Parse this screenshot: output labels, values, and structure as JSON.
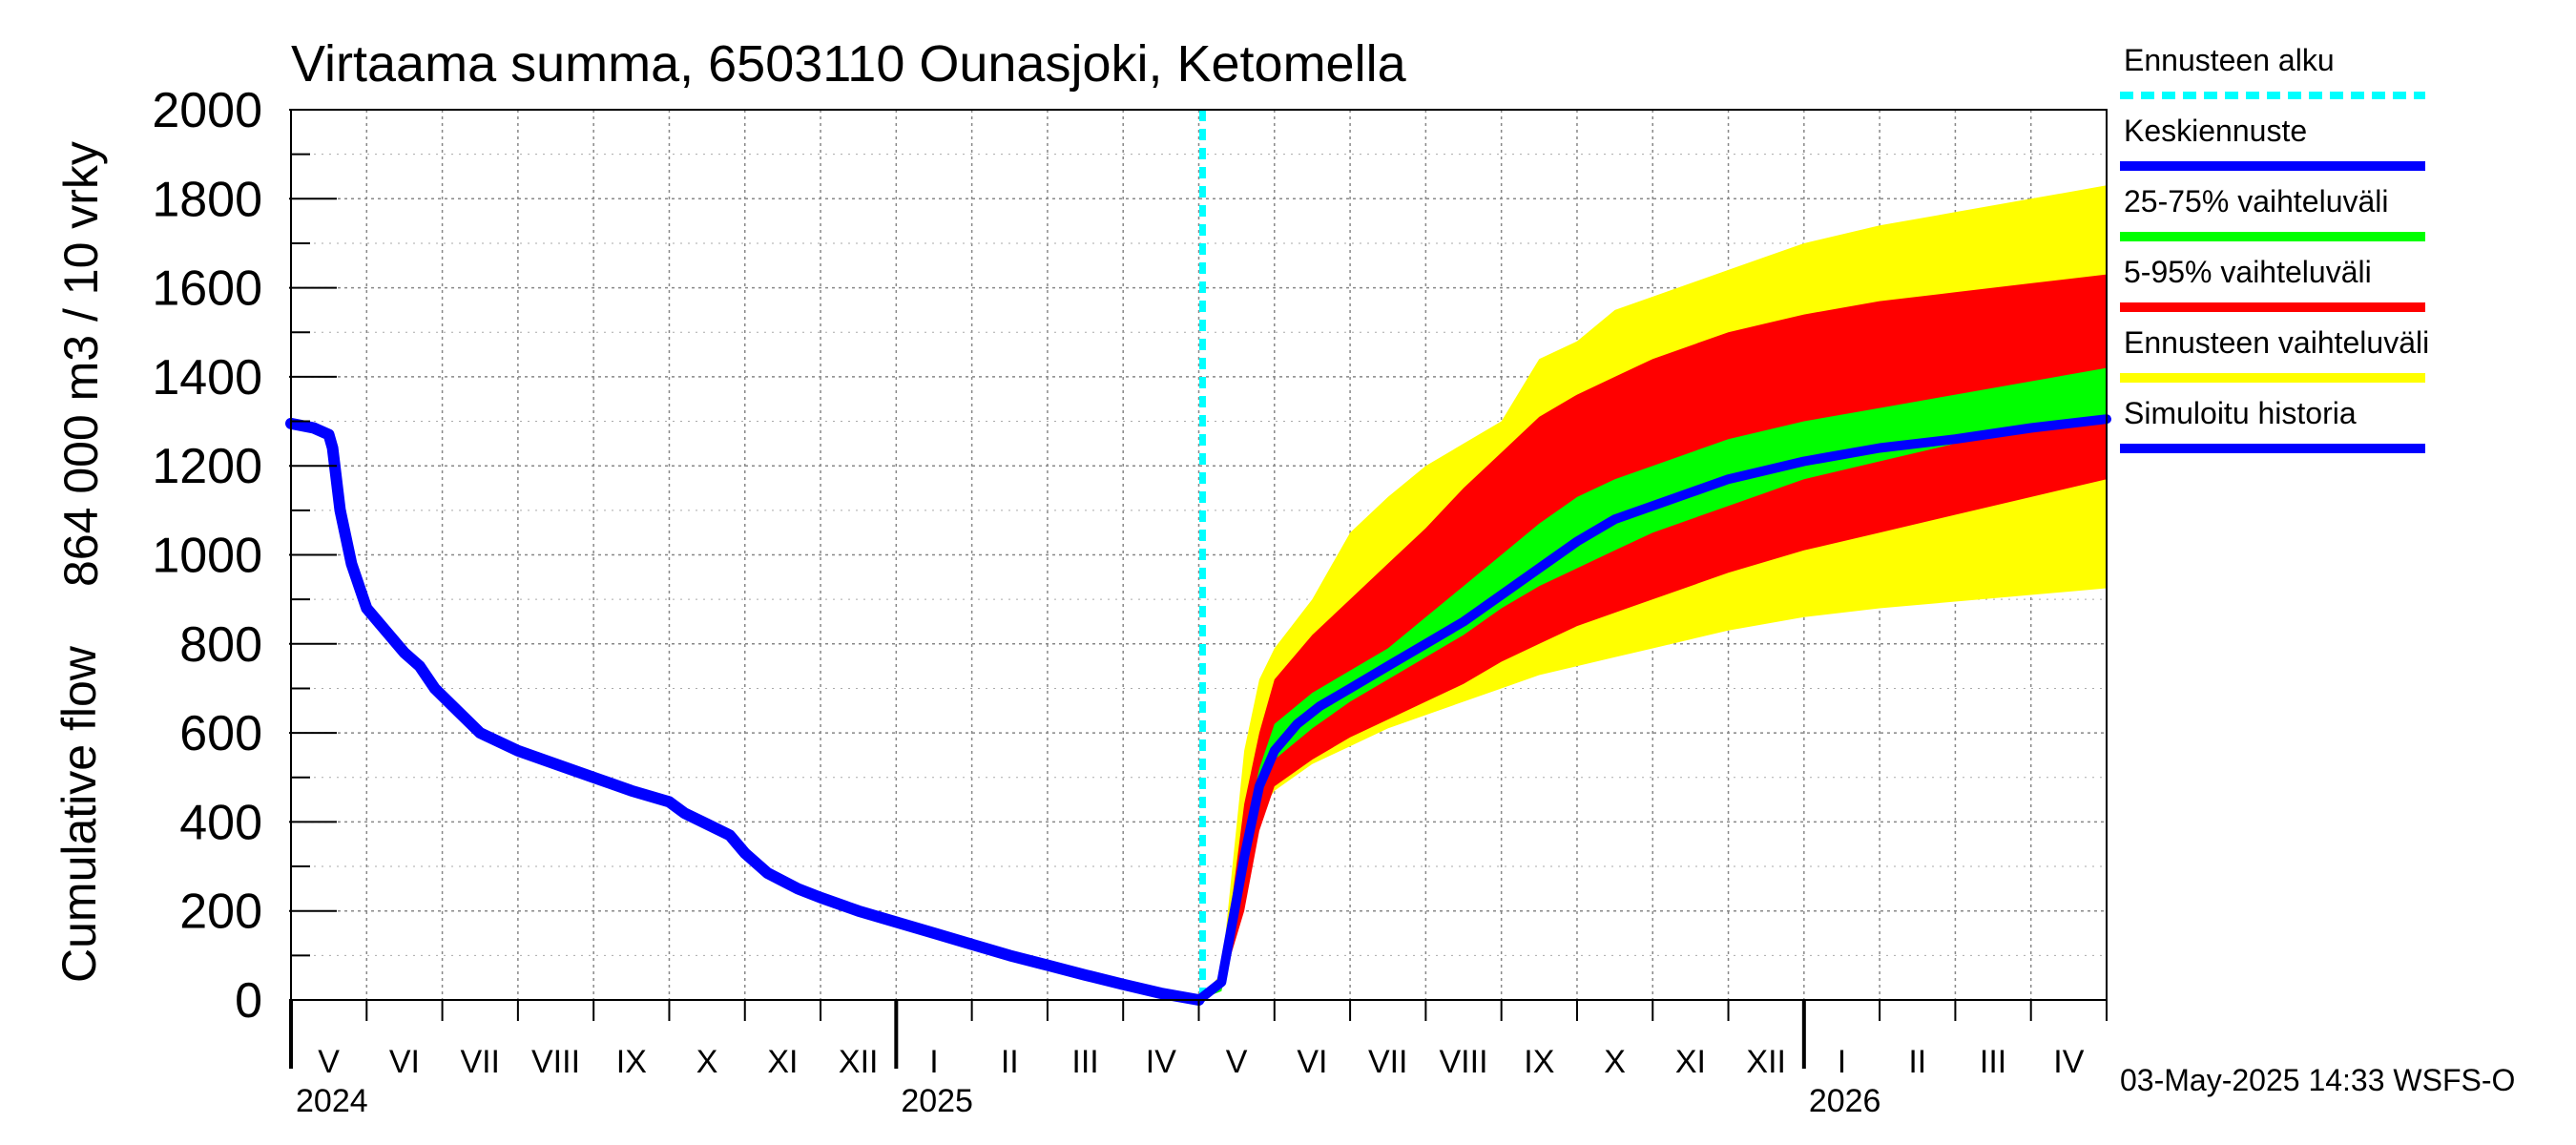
{
  "chart_data": {
    "type": "area",
    "title": "Virtaama summa, 6503110 Ounasjoki, Ketomella",
    "ylabel_1": "864 000 m3 / 10 vrky",
    "ylabel_2": "Cumulative flow",
    "ylim": [
      0,
      2000
    ],
    "yticks": [
      "0",
      "200",
      "400",
      "600",
      "800",
      "1000",
      "1200",
      "1400",
      "1600",
      "1800",
      "2000"
    ],
    "x_start_month_index": 0,
    "x_end_month_index": 24,
    "months": [
      "V",
      "VI",
      "VII",
      "VIII",
      "IX",
      "X",
      "XI",
      "XII",
      "I",
      "II",
      "III",
      "IV",
      "V",
      "VI",
      "VII",
      "VIII",
      "IX",
      "X",
      "XI",
      "XII",
      "I",
      "II",
      "III",
      "IV"
    ],
    "years": [
      {
        "label": "2024",
        "month_index": 0
      },
      {
        "label": "2025",
        "month_index": 8
      },
      {
        "label": "2026",
        "month_index": 20
      }
    ],
    "forecast_start_month_index": 12.05,
    "history": {
      "name": "Simuloitu historia",
      "color": "#0000ff",
      "x": [
        0,
        0.3,
        0.5,
        0.55,
        0.65,
        0.8,
        1.0,
        1.2,
        1.5,
        1.7,
        1.9,
        2.2,
        2.5,
        3.0,
        3.5,
        4.0,
        4.5,
        5.0,
        5.2,
        5.5,
        5.8,
        6.0,
        6.3,
        6.7,
        7.0,
        7.5,
        8.0,
        8.5,
        9.0,
        9.5,
        10.0,
        10.5,
        11.0,
        11.5,
        12.0
      ],
      "y": [
        1295,
        1285,
        1270,
        1240,
        1100,
        980,
        880,
        840,
        780,
        750,
        700,
        650,
        600,
        560,
        530,
        500,
        470,
        445,
        420,
        395,
        370,
        330,
        285,
        250,
        230,
        200,
        175,
        150,
        125,
        100,
        78,
        56,
        35,
        15,
        0
      ]
    },
    "series": [
      {
        "name": "Ennusteen vaihteluväli",
        "color": "#ffff00",
        "x": [
          12,
          12.3,
          12.6,
          12.8,
          13.0,
          13.5,
          14.0,
          14.5,
          15.0,
          15.5,
          16.0,
          16.5,
          17.0,
          17.5,
          18.0,
          18.5,
          19.0,
          19.5,
          20.0,
          21.0,
          22.0,
          23.0,
          24.0
        ],
        "upper": [
          0,
          60,
          560,
          720,
          790,
          900,
          1050,
          1130,
          1200,
          1250,
          1300,
          1440,
          1480,
          1550,
          1580,
          1610,
          1640,
          1670,
          1700,
          1740,
          1770,
          1800,
          1830
        ],
        "lower": [
          0,
          20,
          280,
          420,
          470,
          530,
          570,
          610,
          640,
          670,
          700,
          730,
          750,
          770,
          790,
          810,
          830,
          845,
          860,
          880,
          895,
          910,
          925
        ]
      },
      {
        "name": "5-95% vaihteluväli",
        "color": "#ff0000",
        "x": [
          12,
          12.3,
          12.6,
          12.8,
          13.0,
          13.5,
          14.0,
          14.5,
          15.0,
          15.5,
          16.0,
          16.5,
          17.0,
          17.5,
          18.0,
          18.5,
          19.0,
          19.5,
          20.0,
          21.0,
          22.0,
          23.0,
          24.0
        ],
        "upper": [
          0,
          40,
          440,
          600,
          720,
          820,
          900,
          980,
          1060,
          1150,
          1230,
          1310,
          1360,
          1400,
          1440,
          1470,
          1500,
          1520,
          1540,
          1570,
          1590,
          1610,
          1630
        ],
        "lower": [
          0,
          30,
          200,
          380,
          480,
          540,
          590,
          630,
          670,
          710,
          760,
          800,
          840,
          870,
          900,
          930,
          960,
          985,
          1010,
          1050,
          1090,
          1130,
          1170
        ]
      },
      {
        "name": "25-75% vaihteluväli",
        "color": "#00ff00",
        "x": [
          12,
          12.3,
          12.6,
          12.8,
          13.0,
          13.5,
          14.0,
          14.5,
          15.0,
          15.5,
          16.0,
          16.5,
          17.0,
          17.5,
          18.0,
          18.5,
          19.0,
          19.5,
          20.0,
          21.0,
          22.0,
          23.0,
          24.0
        ],
        "upper": [
          0,
          30,
          360,
          520,
          620,
          690,
          740,
          790,
          860,
          930,
          1000,
          1070,
          1130,
          1170,
          1200,
          1230,
          1260,
          1280,
          1300,
          1330,
          1360,
          1390,
          1420
        ],
        "lower": [
          0,
          20,
          280,
          450,
          540,
          610,
          670,
          720,
          770,
          820,
          880,
          930,
          970,
          1010,
          1050,
          1080,
          1110,
          1140,
          1170,
          1210,
          1250,
          1280,
          1310
        ]
      },
      {
        "name": "Keskiennuste",
        "color": "#0000ff",
        "x": [
          12,
          12.3,
          12.6,
          12.8,
          13.0,
          13.3,
          13.6,
          14.0,
          14.5,
          15.0,
          15.5,
          16.0,
          16.5,
          17.0,
          17.5,
          18.0,
          18.5,
          19.0,
          19.5,
          20.0,
          21.0,
          22.0,
          23.0,
          24.0
        ],
        "values": [
          0,
          40,
          320,
          480,
          560,
          620,
          660,
          700,
          750,
          800,
          850,
          910,
          970,
          1030,
          1080,
          1110,
          1140,
          1170,
          1190,
          1210,
          1240,
          1260,
          1285,
          1305
        ]
      }
    ],
    "legend": [
      {
        "label": "Ennusteen alku",
        "color": "#00ffff",
        "style": "dashed"
      },
      {
        "label": "Keskiennuste",
        "color": "#0000ff",
        "style": "solid"
      },
      {
        "label": "25-75% vaihteluväli",
        "color": "#00ff00",
        "style": "solid"
      },
      {
        "label": "5-95% vaihteluväli",
        "color": "#ff0000",
        "style": "solid"
      },
      {
        "label": "Ennusteen vaihteluväli",
        "color": "#ffff00",
        "style": "solid"
      },
      {
        "label": "Simuloitu historia",
        "color": "#0000ff",
        "style": "solid"
      }
    ],
    "footer": "03-May-2025 14:33 WSFS-O"
  }
}
